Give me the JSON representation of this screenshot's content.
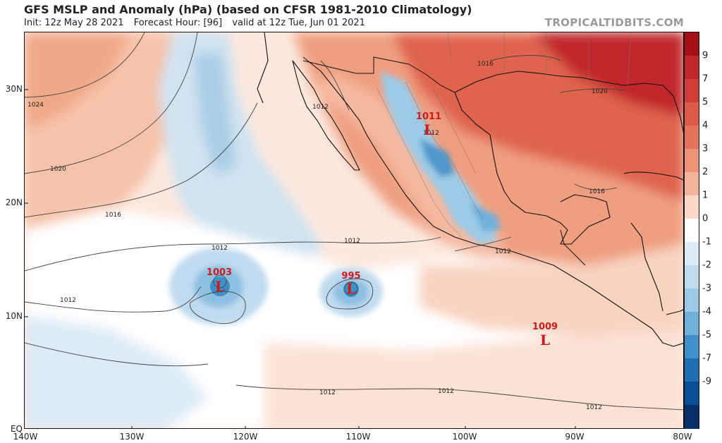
{
  "header": {
    "title": "GFS MSLP and Anomaly (hPa) (based on CFSR 1981-2010 Climatology)",
    "init": "Init: 12z May 28 2021",
    "forecast_hour": "Forecast Hour: [96]",
    "valid": "valid at 12z Tue, Jun 01 2021",
    "source": "TROPICALTIDBITS.COM"
  },
  "axes": {
    "lat_labels": [
      "30N",
      "20N",
      "10N",
      "EQ"
    ],
    "lon_labels": [
      "140W",
      "130W",
      "120W",
      "110W",
      "100W",
      "90W",
      "80W"
    ]
  },
  "colorbar": {
    "labels": [
      "9",
      "7",
      "5",
      "4",
      "3",
      "2",
      "1",
      "0",
      "-1",
      "-2",
      "-3",
      "-4",
      "-5",
      "-7",
      "-9"
    ],
    "colors": [
      "#a50f15",
      "#c0282c",
      "#d23c36",
      "#dc5a48",
      "#e4735e",
      "#ec9278",
      "#f3b49c",
      "#fad8c8",
      "#ffffff",
      "#dcebf5",
      "#c0dbef",
      "#9ccae6",
      "#6fb0da",
      "#3f8fc9",
      "#1f6fb3",
      "#0a4f95",
      "#08306b"
    ]
  },
  "isobars": {
    "labels": [
      "1024",
      "1020",
      "1016",
      "1012",
      "1012",
      "1012",
      "1012",
      "1012",
      "1012",
      "1012",
      "1012",
      "1012",
      "1016",
      "1016",
      "1020"
    ]
  },
  "lows": [
    {
      "value": "1003",
      "symbol": "L"
    },
    {
      "value": "995",
      "symbol": "L"
    },
    {
      "value": "1011",
      "symbol": "L"
    },
    {
      "value": "1009",
      "symbol": "L"
    }
  ],
  "colors": {
    "strong_positive": "#c0282c",
    "positive": "#f3b49c",
    "negative": "#9ccae6",
    "low_marker": "#d01a1a"
  }
}
